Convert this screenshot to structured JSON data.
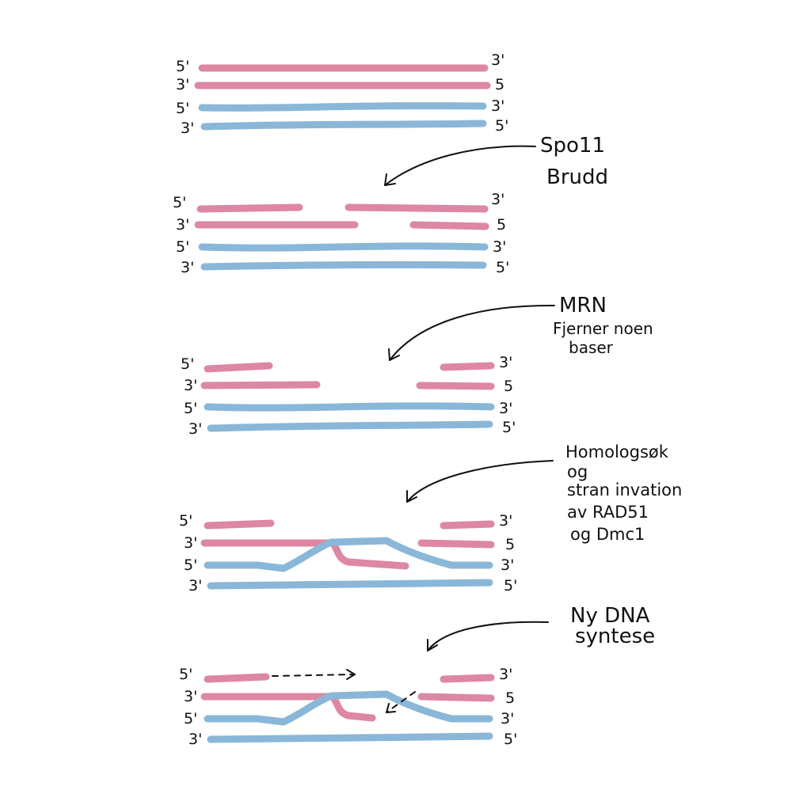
{
  "colors": {
    "pink_strand": "#de87a2",
    "blue_strand": "#8ab7d8",
    "ink": "#111111",
    "background": "#ffffff"
  },
  "end_labels": {
    "five_prime": "5'",
    "three_prime": "3'",
    "five": "5"
  },
  "annotations": {
    "spo11": {
      "line1": "Spo11",
      "line2": "Brudd"
    },
    "mrn": {
      "line1": "MRN",
      "line2": "Fjerner noen",
      "line3": "baser"
    },
    "homolog": {
      "line1": "Homologsøk",
      "line2": "og",
      "line3": "stran invation",
      "line4": "av RAD51",
      "line5": "og Dmc1"
    },
    "synthesis": {
      "line1": "Ny DNA",
      "line2": "syntese"
    }
  }
}
